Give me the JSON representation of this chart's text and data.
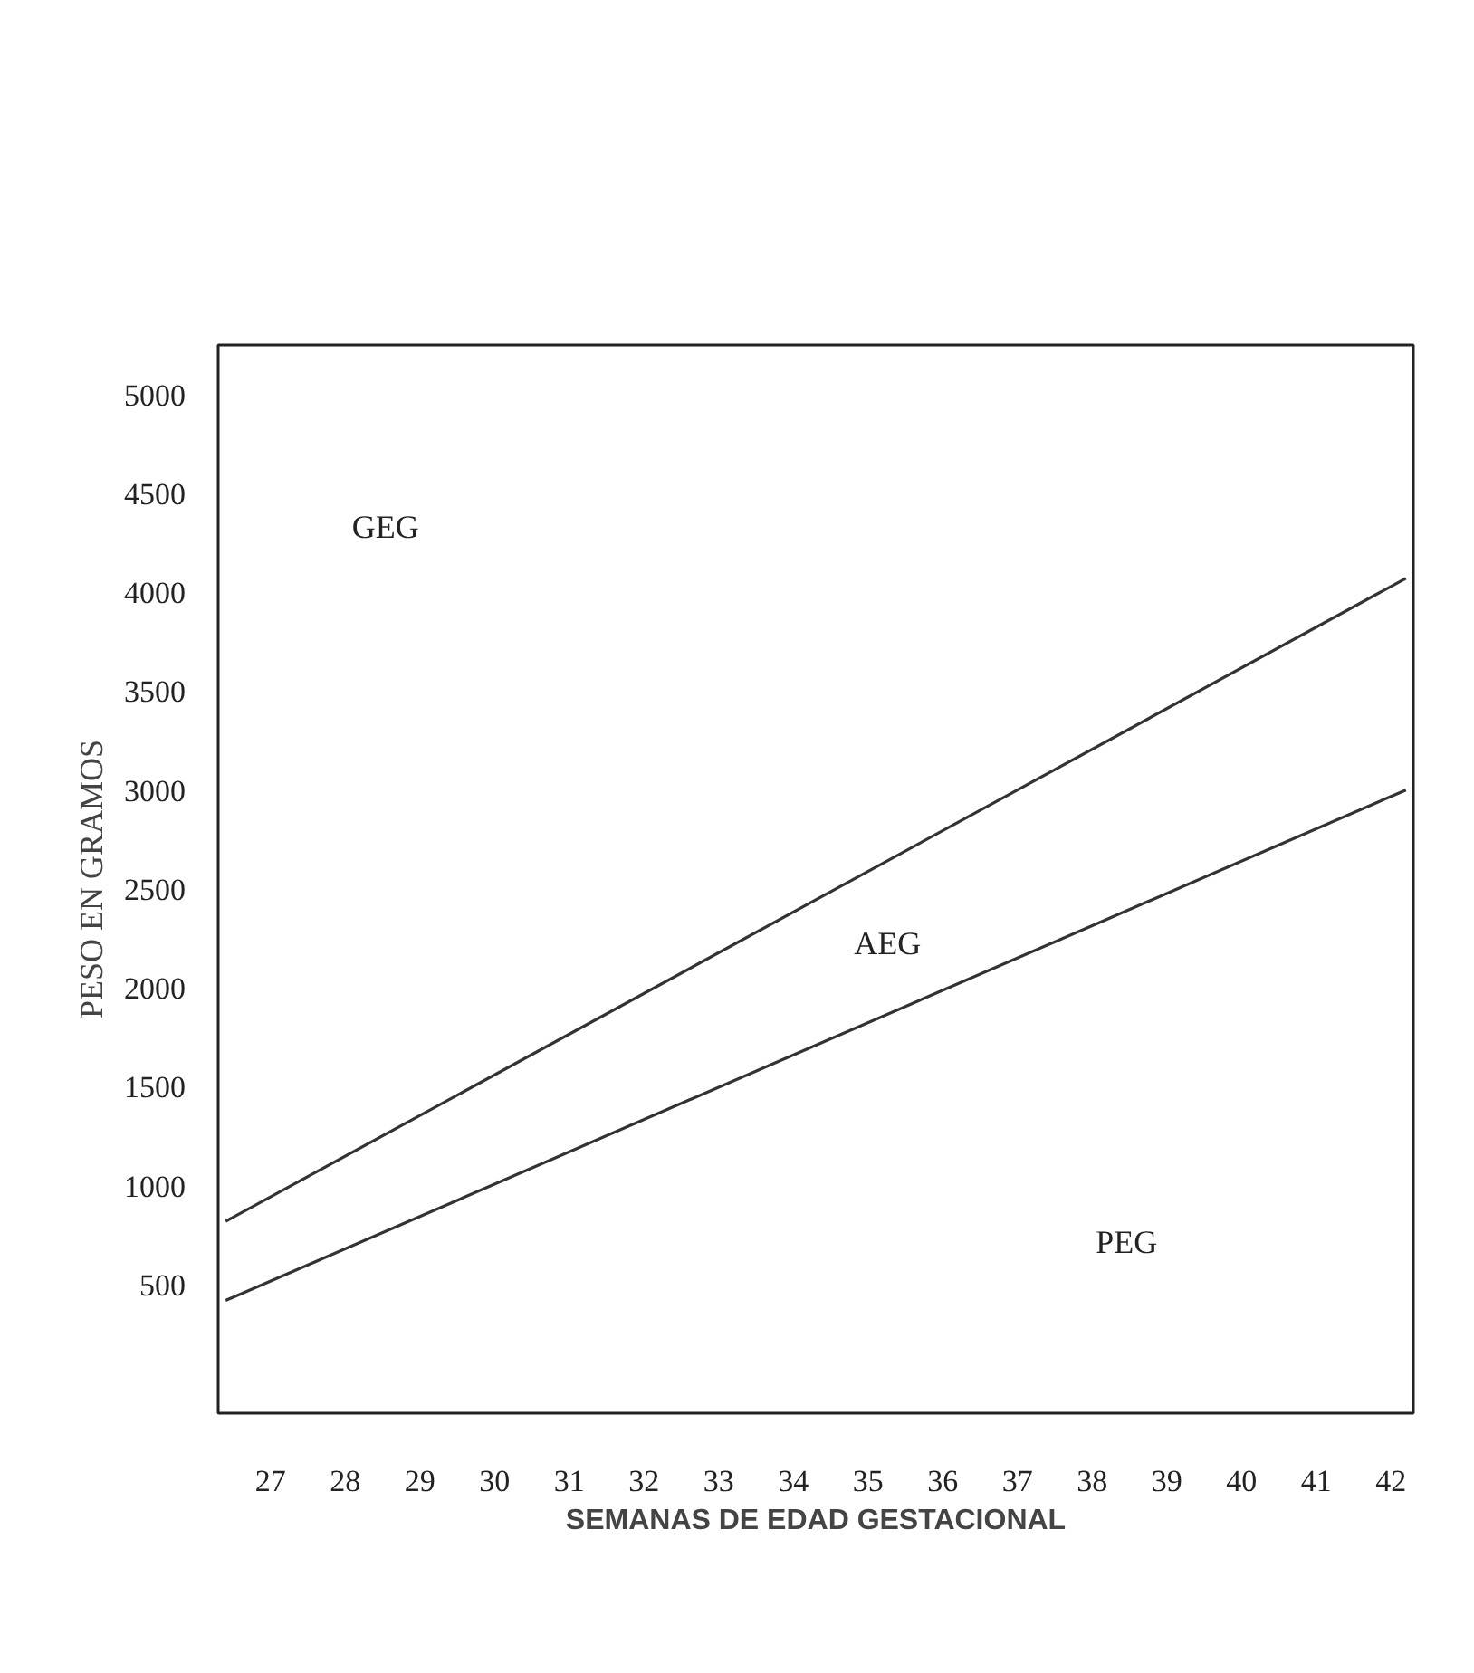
{
  "chart_data": {
    "type": "line",
    "xlabel": "SEMANAS DE EDAD GESTACIONAL",
    "ylabel": "PESO EN GRAMOS",
    "xlim": [
      26.3,
      42.3
    ],
    "x": [
      26.4,
      42.2
    ],
    "ylim": [
      -150,
      5250
    ],
    "xticks": [
      27,
      28,
      29,
      30,
      31,
      32,
      33,
      34,
      35,
      36,
      37,
      38,
      39,
      40,
      41,
      42
    ],
    "yticks": [
      500,
      1000,
      1500,
      2000,
      2500,
      3000,
      3500,
      4000,
      4500,
      5000
    ],
    "series": [
      {
        "color": "#333333",
        "values": [
          820,
          4070
        ]
      },
      {
        "color": "#333333",
        "values": [
          420,
          3000
        ]
      }
    ],
    "annotations": [
      "GEG",
      "AEG",
      "PEG"
    ],
    "grid": false
  }
}
